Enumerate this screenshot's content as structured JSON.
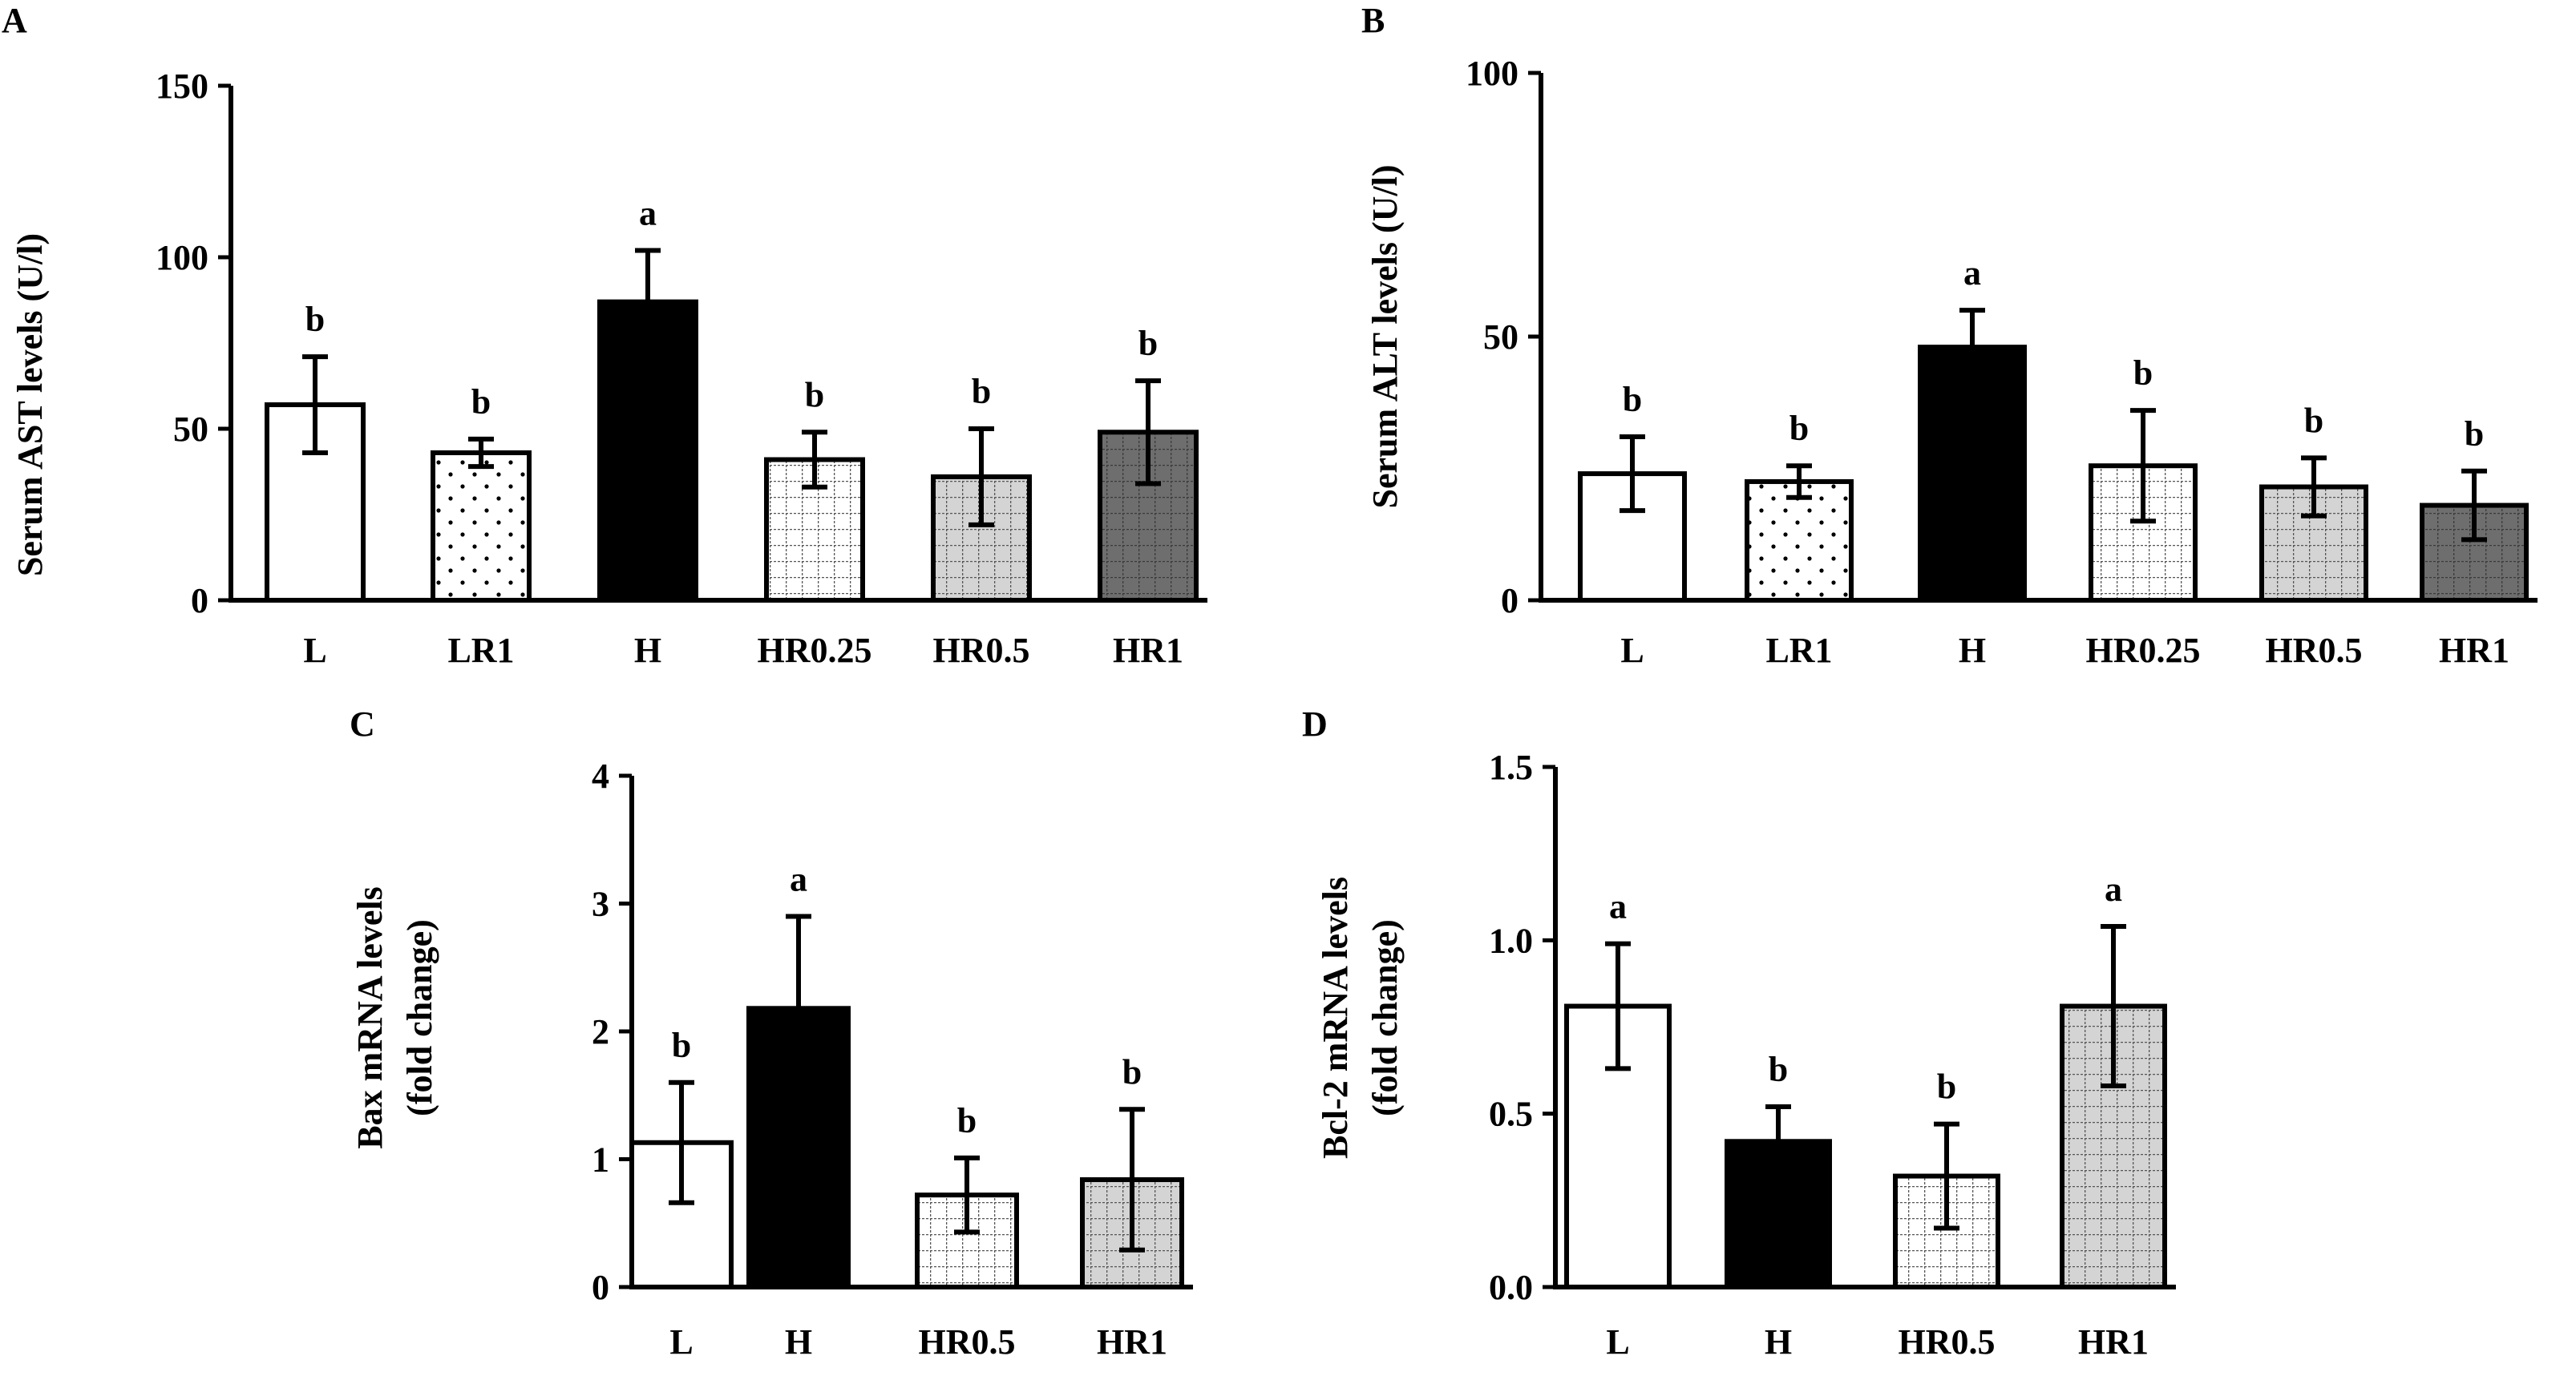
{
  "chart_data": [
    {
      "panel": "A",
      "type": "bar",
      "ylabel": [
        "Serum AST levels (U/l)"
      ],
      "ylim": [
        0,
        150
      ],
      "yticks": [
        0,
        50,
        100,
        150
      ],
      "categories": [
        "L",
        "LR1",
        "H",
        "HR0.25",
        "HR0.5",
        "HR1"
      ],
      "values": [
        57,
        43,
        87,
        41,
        36,
        49
      ],
      "errors": [
        14,
        4,
        15,
        8,
        14,
        15
      ],
      "significance": [
        "b",
        "b",
        "a",
        "b",
        "b",
        "b"
      ],
      "fills": [
        "white",
        "dots",
        "black",
        "grid-white",
        "grid-light",
        "grid-dark"
      ]
    },
    {
      "panel": "B",
      "type": "bar",
      "ylabel": [
        "Serum ALT levels (U/l)"
      ],
      "ylim": [
        0,
        100
      ],
      "yticks": [
        0,
        50,
        100
      ],
      "categories": [
        "L",
        "LR1",
        "H",
        "HR0.25",
        "HR0.5",
        "HR1"
      ],
      "values": [
        24,
        22.5,
        48,
        25.5,
        21.5,
        18
      ],
      "errors": [
        7,
        3,
        7,
        10.5,
        5.5,
        6.5
      ],
      "significance": [
        "b",
        "b",
        "a",
        "b",
        "b",
        "b"
      ],
      "fills": [
        "white",
        "dots",
        "black",
        "grid-white",
        "grid-light",
        "grid-dark"
      ]
    },
    {
      "panel": "C",
      "type": "bar",
      "ylabel": [
        "Bax mRNA levels",
        "(fold change)"
      ],
      "ylim": [
        0,
        4
      ],
      "yticks": [
        0,
        1,
        2,
        3,
        4
      ],
      "categories": [
        "L",
        "H",
        "HR0.5",
        "HR1"
      ],
      "values": [
        1.13,
        2.18,
        0.72,
        0.84
      ],
      "errors": [
        0.47,
        0.72,
        0.29,
        0.55
      ],
      "significance": [
        "b",
        "a",
        "b",
        "b"
      ],
      "fills": [
        "white",
        "black",
        "grid-white",
        "grid-light"
      ]
    },
    {
      "panel": "D",
      "type": "bar",
      "ylabel": [
        "Bcl-2 mRNA levels",
        "(fold change)"
      ],
      "ylim": [
        0,
        1.5
      ],
      "yticks": [
        "0.0",
        "0.5",
        "1.0",
        "1.5"
      ],
      "categories": [
        "L",
        "H",
        "HR0.5",
        "HR1"
      ],
      "values": [
        0.81,
        0.42,
        0.32,
        0.81
      ],
      "errors": [
        0.18,
        0.1,
        0.15,
        0.23
      ],
      "significance": [
        "a",
        "b",
        "b",
        "a"
      ],
      "fills": [
        "white",
        "black",
        "grid-white",
        "grid-light"
      ]
    }
  ],
  "colors": {
    "ink": "#000000",
    "white": "#ffffff",
    "light_gray": "#d4d4d4",
    "dark_gray": "#6e6e6e",
    "grid_line": "#555555"
  }
}
